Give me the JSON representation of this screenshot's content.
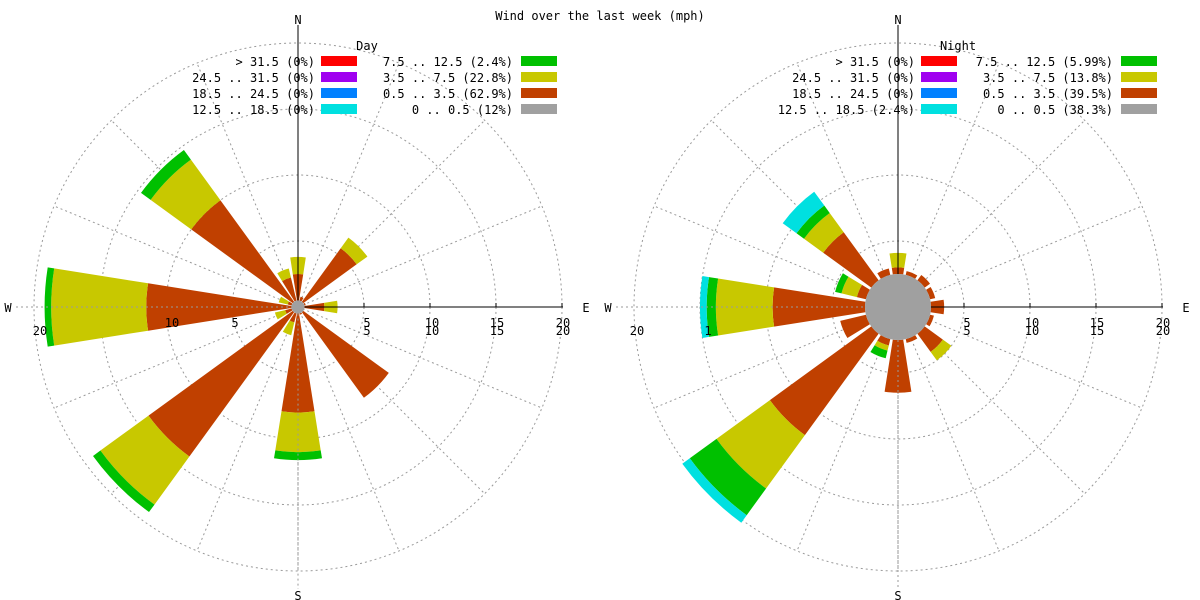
{
  "title": "Wind over the last week (mph)",
  "compass": [
    "N",
    "E",
    "S",
    "W"
  ],
  "chart_data": [
    {
      "type": "wind-rose",
      "subtitle": "Day",
      "radial_ticks": [
        5,
        10,
        15,
        20
      ],
      "rmax": 20,
      "ticks_labeled": [
        "20",
        "10",
        "5",
        "5",
        "10",
        "15",
        "20",
        "5",
        "10",
        "15",
        "20"
      ],
      "legend": [
        {
          "label": "> 31.5 (0%)",
          "color": "#ff0000"
        },
        {
          "label": "24.5 .. 31.5 (0%)",
          "color": "#a000f0"
        },
        {
          "label": "18.5 .. 24.5 (0%)",
          "color": "#0080ff"
        },
        {
          "label": "12.5 .. 18.5 (0%)",
          "color": "#00e0e0"
        },
        {
          "label": "7.5 .. 12.5 (2.4%)",
          "color": "#00c000"
        },
        {
          "label": "3.5 .. 7.5 (22.8%)",
          "color": "#c8c800"
        },
        {
          "label": "0.5 .. 3.5 (62.9%)",
          "color": "#c04000"
        },
        {
          "label": "0 .. 0.5 (12%)",
          "color": "#a0a0a0"
        }
      ],
      "calm": 0.5,
      "sectors": [
        {
          "dir": 0,
          "bins": [
            {
              "b": 2,
              "to": 2.5
            },
            {
              "b": 1,
              "to": 3.8
            }
          ]
        },
        {
          "dir": 22.5,
          "bins": [
            {
              "b": 2,
              "to": 0.8
            }
          ]
        },
        {
          "dir": 45,
          "bins": [
            {
              "b": 2,
              "to": 5.5
            },
            {
              "b": 1,
              "to": 6.5
            }
          ]
        },
        {
          "dir": 67.5,
          "bins": [
            {
              "b": 2,
              "to": 0.6
            }
          ]
        },
        {
          "dir": 90,
          "bins": [
            {
              "b": 2,
              "to": 2.0
            },
            {
              "b": 1,
              "to": 3.0
            }
          ]
        },
        {
          "dir": 112.5,
          "bins": [
            {
              "b": 2,
              "to": 0.5
            }
          ]
        },
        {
          "dir": 135,
          "bins": [
            {
              "b": 2,
              "to": 8.5
            }
          ]
        },
        {
          "dir": 157.5,
          "bins": [
            {
              "b": 2,
              "to": 0.6
            }
          ]
        },
        {
          "dir": 180,
          "bins": [
            {
              "b": 2,
              "to": 8.0
            },
            {
              "b": 1,
              "to": 11.0
            },
            {
              "b": 0,
              "to": 11.6
            }
          ]
        },
        {
          "dir": 202.5,
          "bins": [
            {
              "b": 2,
              "to": 1.2
            },
            {
              "b": 1,
              "to": 2.2
            }
          ]
        },
        {
          "dir": 225,
          "bins": [
            {
              "b": 2,
              "to": 14.0
            },
            {
              "b": 1,
              "to": 18.5
            },
            {
              "b": 0,
              "to": 19.2
            }
          ]
        },
        {
          "dir": 247.5,
          "bins": [
            {
              "b": 2,
              "to": 1.0
            },
            {
              "b": 1,
              "to": 1.8
            }
          ]
        },
        {
          "dir": 270,
          "bins": [
            {
              "b": 2,
              "to": 11.5
            },
            {
              "b": 1,
              "to": 18.7
            },
            {
              "b": 0,
              "to": 19.2
            }
          ]
        },
        {
          "dir": 292.5,
          "bins": [
            {
              "b": 2,
              "to": 0.8
            },
            {
              "b": 1,
              "to": 1.5
            }
          ]
        },
        {
          "dir": 315,
          "bins": [
            {
              "b": 2,
              "to": 10.0
            },
            {
              "b": 1,
              "to": 13.8
            },
            {
              "b": 0,
              "to": 14.7
            }
          ]
        },
        {
          "dir": 337.5,
          "bins": [
            {
              "b": 2,
              "to": 2.3
            },
            {
              "b": 1,
              "to": 3.0
            }
          ]
        }
      ]
    },
    {
      "type": "wind-rose",
      "subtitle": "Night",
      "radial_ticks": [
        5,
        10,
        15,
        20
      ],
      "rmax": 20,
      "ticks_labeled": [
        "20",
        "1",
        "5",
        "10",
        "15",
        "20",
        "5",
        "10",
        "15",
        "20"
      ],
      "legend": [
        {
          "label": "> 31.5 (0%)",
          "color": "#ff0000"
        },
        {
          "label": "24.5 .. 31.5 (0%)",
          "color": "#a000f0"
        },
        {
          "label": "18.5 .. 24.5 (0%)",
          "color": "#0080ff"
        },
        {
          "label": "12.5 .. 18.5 (2.4%)",
          "color": "#00e0e0"
        },
        {
          "label": "7.5 .. 12.5 (5.99%)",
          "color": "#00c000"
        },
        {
          "label": "3.5 .. 7.5 (13.8%)",
          "color": "#c8c800"
        },
        {
          "label": "0.5 .. 3.5 (39.5%)",
          "color": "#c04000"
        },
        {
          "label": "0 .. 0.5 (38.3%)",
          "color": "#a0a0a0"
        }
      ],
      "calm": 2.5,
      "sectors": [
        {
          "dir": 0,
          "bins": [
            {
              "b": 2,
              "to": 3.0
            },
            {
              "b": 1,
              "to": 4.1
            }
          ]
        },
        {
          "dir": 22.5,
          "bins": [
            {
              "b": 2,
              "to": 2.8
            }
          ]
        },
        {
          "dir": 45,
          "bins": [
            {
              "b": 2,
              "to": 3.0
            }
          ]
        },
        {
          "dir": 67.5,
          "bins": [
            {
              "b": 2,
              "to": 2.9
            }
          ]
        },
        {
          "dir": 90,
          "bins": [
            {
              "b": 2,
              "to": 3.5
            }
          ]
        },
        {
          "dir": 112.5,
          "bins": [
            {
              "b": 2,
              "to": 2.8
            }
          ]
        },
        {
          "dir": 135,
          "bins": [
            {
              "b": 2,
              "to": 4.2
            },
            {
              "b": 1,
              "to": 5.0
            }
          ]
        },
        {
          "dir": 157.5,
          "bins": [
            {
              "b": 2,
              "to": 2.8
            }
          ]
        },
        {
          "dir": 180,
          "bins": [
            {
              "b": 2,
              "to": 6.5
            }
          ]
        },
        {
          "dir": 202.5,
          "bins": [
            {
              "b": 2,
              "to": 3.0
            },
            {
              "b": 1,
              "to": 3.4
            },
            {
              "b": 0,
              "to": 4.0
            }
          ]
        },
        {
          "dir": 225,
          "bins": [
            {
              "b": 2,
              "to": 12.0
            },
            {
              "b": 1,
              "to": 17.0
            },
            {
              "b": 0,
              "to": 19.5
            },
            {
              "b": 3,
              "to": 20.2
            }
          ]
        },
        {
          "dir": 247.5,
          "bins": [
            {
              "b": 2,
              "to": 4.5
            }
          ]
        },
        {
          "dir": 270,
          "bins": [
            {
              "b": 2,
              "to": 9.5
            },
            {
              "b": 1,
              "to": 13.8
            },
            {
              "b": 0,
              "to": 14.5
            },
            {
              "b": 3,
              "to": 15.0
            }
          ]
        },
        {
          "dir": 292.5,
          "bins": [
            {
              "b": 2,
              "to": 3.2
            },
            {
              "b": 1,
              "to": 4.4
            },
            {
              "b": 0,
              "to": 4.9
            }
          ]
        },
        {
          "dir": 315,
          "bins": [
            {
              "b": 2,
              "to": 7.0
            },
            {
              "b": 1,
              "to": 8.8
            },
            {
              "b": 0,
              "to": 9.5
            },
            {
              "b": 3,
              "to": 10.8
            }
          ]
        },
        {
          "dir": 337.5,
          "bins": [
            {
              "b": 2,
              "to": 3.0
            }
          ]
        }
      ]
    }
  ]
}
